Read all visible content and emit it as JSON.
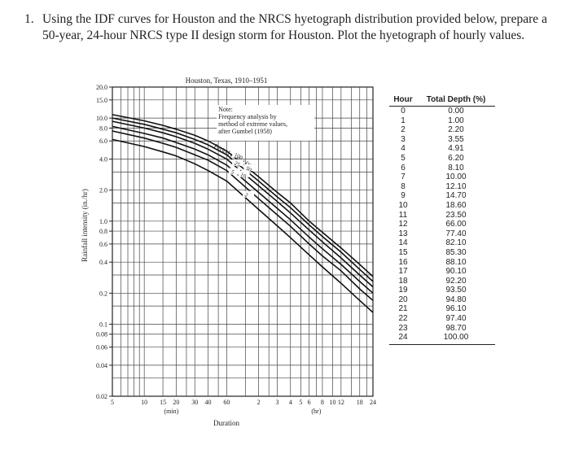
{
  "question": {
    "number": "1.",
    "text": "Using the IDF curves for Houston and the NRCS hyetograph distribution provided below, prepare a 50-year, 24-hour NRCS type II design storm for Houston. Plot the hyetograph of hourly values."
  },
  "figure": {
    "title": "Houston, Texas, 1910–1951",
    "ylabel": "Rainfall intensity (in./hr)",
    "xlabel": "Duration",
    "unit_min": "(min)",
    "unit_hr": "(hr)",
    "note": [
      "Note:",
      "Frequency analysis by",
      "method of extreme values,",
      "after Gumbel (1958)"
    ],
    "period_label": "Period return (yr)",
    "curve_labels": [
      "100",
      "50",
      "25",
      "10",
      "5",
      "2"
    ],
    "y_ticks": [
      "20.0",
      "15.0",
      "10.0",
      "8.0",
      "6.0",
      "4.0",
      "2.0",
      "1.0",
      "0.8",
      "0.6",
      "0.4",
      "0.2",
      "0.1",
      "0.08",
      "0.06",
      "0.04",
      "0.02"
    ],
    "x_ticks_min": [
      "5",
      "10",
      "15",
      "20",
      "30",
      "40",
      "60"
    ],
    "x_ticks_hr": [
      "2",
      "3",
      "4",
      "5",
      "6",
      "8",
      "10",
      "12",
      "18",
      "24"
    ]
  },
  "chart_data": {
    "type": "line",
    "title": "Houston, Texas, 1910–1951",
    "xlabel": "Duration",
    "ylabel": "Rainfall intensity (in./hr)",
    "x_scale": "log",
    "y_scale": "log",
    "xlim_min": [
      5,
      1440
    ],
    "ylim": [
      0.02,
      20
    ],
    "x_min": [
      5,
      10,
      15,
      20,
      30,
      40,
      60,
      120,
      180,
      240,
      360,
      480,
      720,
      1080,
      1440
    ],
    "series": [
      {
        "name": "100",
        "values": [
          10.8,
          9.4,
          8.5,
          7.8,
          6.8,
          6.0,
          4.8,
          2.7,
          1.9,
          1.5,
          1.0,
          0.78,
          0.55,
          0.38,
          0.29
        ]
      },
      {
        "name": "50",
        "values": [
          10.0,
          8.7,
          7.8,
          7.2,
          6.2,
          5.5,
          4.4,
          2.45,
          1.72,
          1.35,
          0.92,
          0.71,
          0.5,
          0.34,
          0.26
        ]
      },
      {
        "name": "25",
        "values": [
          9.3,
          8.0,
          7.2,
          6.6,
          5.7,
          5.0,
          4.0,
          2.2,
          1.55,
          1.2,
          0.82,
          0.63,
          0.44,
          0.3,
          0.23
        ]
      },
      {
        "name": "10",
        "values": [
          8.3,
          7.1,
          6.4,
          5.8,
          5.0,
          4.4,
          3.5,
          1.9,
          1.33,
          1.03,
          0.7,
          0.54,
          0.38,
          0.26,
          0.2
        ]
      },
      {
        "name": "5",
        "values": [
          7.5,
          6.4,
          5.7,
          5.2,
          4.4,
          3.9,
          3.1,
          1.65,
          1.15,
          0.89,
          0.6,
          0.46,
          0.33,
          0.22,
          0.17
        ]
      },
      {
        "name": "2",
        "values": [
          6.2,
          5.3,
          4.7,
          4.3,
          3.6,
          3.1,
          2.45,
          1.3,
          0.9,
          0.69,
          0.47,
          0.36,
          0.25,
          0.17,
          0.13
        ]
      }
    ]
  },
  "table": {
    "headers": [
      "Hour",
      "Total Depth (%)"
    ],
    "rows": [
      [
        "0",
        "0.00"
      ],
      [
        "1",
        "1.00"
      ],
      [
        "2",
        "2.20"
      ],
      [
        "3",
        "3.55"
      ],
      [
        "4",
        "4.91"
      ],
      [
        "5",
        "6.20"
      ],
      [
        "6",
        "8.10"
      ],
      [
        "7",
        "10.00"
      ],
      [
        "8",
        "12.10"
      ],
      [
        "9",
        "14.70"
      ],
      [
        "10",
        "18.60"
      ],
      [
        "11",
        "23.50"
      ],
      [
        "12",
        "66.00"
      ],
      [
        "13",
        "77.40"
      ],
      [
        "14",
        "82.10"
      ],
      [
        "15",
        "85.30"
      ],
      [
        "16",
        "88.10"
      ],
      [
        "17",
        "90.10"
      ],
      [
        "18",
        "92.20"
      ],
      [
        "19",
        "93.50"
      ],
      [
        "20",
        "94.80"
      ],
      [
        "21",
        "96.10"
      ],
      [
        "22",
        "97.40"
      ],
      [
        "23",
        "98.70"
      ],
      [
        "24",
        "100.00"
      ]
    ]
  }
}
